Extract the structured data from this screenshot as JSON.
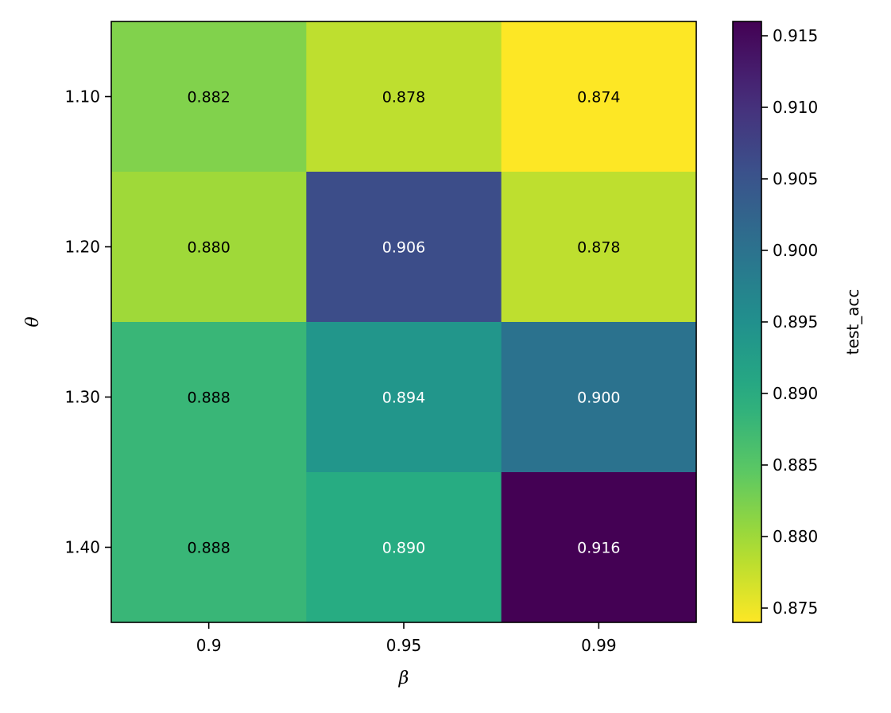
{
  "chart_data": {
    "type": "heatmap",
    "xlabel": "β",
    "ylabel": "θ",
    "x_categories": [
      "0.9",
      "0.95",
      "0.99"
    ],
    "y_categories": [
      "1.10",
      "1.20",
      "1.30",
      "1.40"
    ],
    "values": [
      [
        0.882,
        0.878,
        0.874
      ],
      [
        0.88,
        0.906,
        0.878
      ],
      [
        0.888,
        0.894,
        0.9
      ],
      [
        0.888,
        0.89,
        0.916
      ]
    ],
    "value_labels": [
      [
        "0.882",
        "0.878",
        "0.874"
      ],
      [
        "0.880",
        "0.906",
        "0.878"
      ],
      [
        "0.888",
        "0.894",
        "0.900"
      ],
      [
        "0.888",
        "0.890",
        "0.916"
      ]
    ],
    "colormap": "viridis_r",
    "colorbar": {
      "label": "test_acc",
      "vmin": 0.874,
      "vmax": 0.916,
      "ticks": [
        0.875,
        0.88,
        0.885,
        0.89,
        0.895,
        0.9,
        0.905,
        0.91,
        0.915
      ],
      "tick_labels": [
        "0.875",
        "0.880",
        "0.885",
        "0.890",
        "0.895",
        "0.900",
        "0.905",
        "0.910",
        "0.915"
      ]
    },
    "grid": false
  }
}
